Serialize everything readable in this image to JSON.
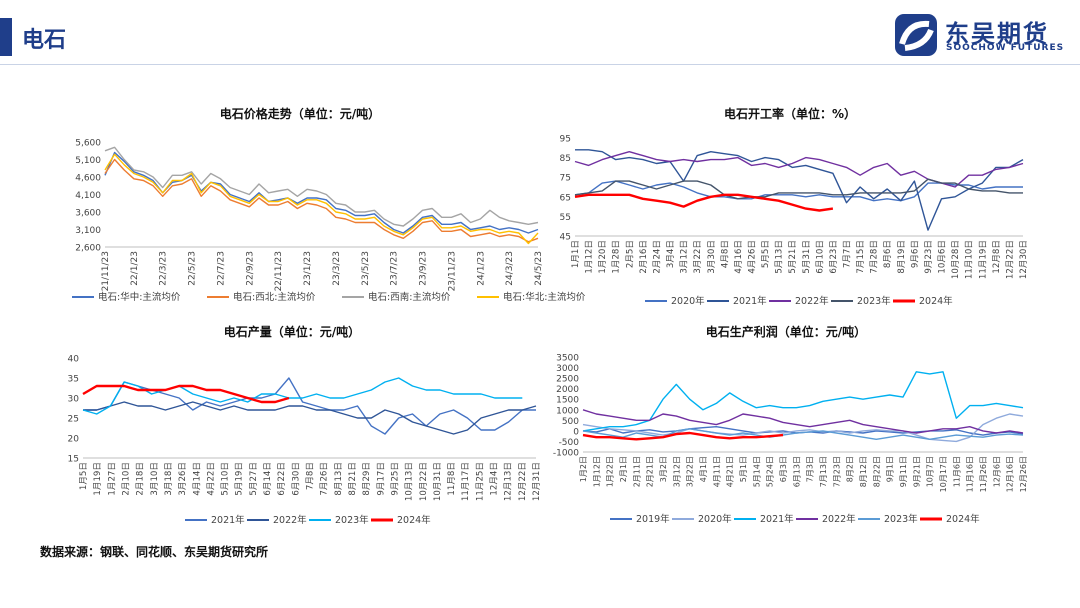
{
  "page": {
    "title": "电石",
    "source": "数据来源：钢联、同花顺、东吴期货研究所"
  },
  "logo": {
    "cn": "东吴期货",
    "en": "SOOCHOW FUTURES",
    "colors": {
      "navy": "#1f3e8a"
    }
  },
  "chart_data": [
    {
      "id": "price",
      "type": "line",
      "title": "电石价格走势（单位：元/吨）",
      "ylim": [
        2600,
        5600
      ],
      "yticks": [
        "5,600",
        "5,100",
        "4,600",
        "4,100",
        "3,600",
        "3,100",
        "2,600"
      ],
      "xticks": [
        "21/11/23",
        "22/1/23",
        "22/3/23",
        "22/5/23",
        "22/7/23",
        "22/9/23",
        "22/11/23",
        "23/1/23",
        "23/3/23",
        "23/5/23",
        "23/7/23",
        "23/9/23",
        "23/11/23",
        "24/1/23",
        "24/3/23",
        "24/5/23"
      ],
      "legend": "bottom",
      "grid": false,
      "series": [
        {
          "name": "电石:华中:主流均价",
          "color": "#4472c4",
          "values": [
            4650,
            5300,
            5050,
            4750,
            4650,
            4500,
            4150,
            4450,
            4500,
            4650,
            4200,
            4450,
            4400,
            4100,
            4000,
            3900,
            4150,
            3900,
            3950,
            4000,
            3850,
            4000,
            4000,
            3950,
            3700,
            3650,
            3500,
            3500,
            3550,
            3300,
            3100,
            3000,
            3200,
            3450,
            3500,
            3250,
            3250,
            3300,
            3100,
            3150,
            3200,
            3100,
            3150,
            3100,
            3000,
            3100
          ]
        },
        {
          "name": "电石:西北:主流均价",
          "color": "#ed7d31",
          "values": [
            4700,
            5100,
            4800,
            4550,
            4500,
            4350,
            4050,
            4350,
            4400,
            4550,
            4050,
            4350,
            4200,
            3950,
            3850,
            3750,
            4000,
            3800,
            3800,
            3900,
            3700,
            3850,
            3800,
            3700,
            3450,
            3400,
            3300,
            3300,
            3300,
            3100,
            2950,
            2850,
            3050,
            3300,
            3350,
            3050,
            3050,
            3100,
            2900,
            2950,
            3000,
            2900,
            2950,
            2900,
            2750,
            2850
          ]
        },
        {
          "name": "电石:西南:主流均价",
          "color": "#a5a5a5",
          "values": [
            5350,
            5450,
            5100,
            4800,
            4750,
            4600,
            4300,
            4650,
            4650,
            4750,
            4400,
            4700,
            4550,
            4300,
            4200,
            4100,
            4400,
            4150,
            4200,
            4250,
            4050,
            4250,
            4200,
            4100,
            3850,
            3800,
            3600,
            3600,
            3650,
            3400,
            3250,
            3200,
            3400,
            3650,
            3700,
            3450,
            3450,
            3550,
            3300,
            3400,
            3650,
            3450,
            3350,
            3300,
            3250,
            3300
          ]
        },
        {
          "name": "电石:华北:主流均价",
          "color": "#ffc000",
          "values": [
            4800,
            5250,
            4950,
            4700,
            4600,
            4450,
            4150,
            4500,
            4500,
            4700,
            4150,
            4450,
            4350,
            4050,
            3950,
            3850,
            4100,
            3900,
            3900,
            4000,
            3800,
            3950,
            3950,
            3850,
            3600,
            3550,
            3400,
            3400,
            3450,
            3200,
            3050,
            2950,
            3150,
            3400,
            3450,
            3150,
            3150,
            3200,
            3050,
            3100,
            3100,
            3000,
            3050,
            3000,
            2700,
            3000
          ]
        }
      ]
    },
    {
      "id": "operating",
      "type": "line",
      "title": "电石开工率（单位：%）",
      "ylim": [
        45,
        95
      ],
      "yticks": [
        "95",
        "85",
        "75",
        "65",
        "55",
        "45"
      ],
      "xticks": [
        "1月1日",
        "1月12日",
        "1月20日",
        "1月28日",
        "2月5日",
        "2月16日",
        "2月24日",
        "3月4日",
        "3月12日",
        "3月22日",
        "3月30日",
        "4月8日",
        "4月16日",
        "4月26日",
        "5月5日",
        "5月13日",
        "5月21日",
        "5月31日",
        "6月10日",
        "6月23日",
        "7月7日",
        "7月15日",
        "7月28日",
        "8月6日",
        "8月19日",
        "9月6日",
        "9月23日",
        "10月6日",
        "10月28日",
        "11月10日",
        "11月19日",
        "12月8日",
        "12月22日",
        "12月30日"
      ],
      "legend": "bottom",
      "grid": false,
      "series": [
        {
          "name": "2020年",
          "color": "#4472c4",
          "values": [
            66,
            67,
            72,
            73,
            71,
            69,
            71,
            72,
            70,
            67,
            65,
            65,
            64,
            64,
            66,
            66,
            66,
            65,
            66,
            65,
            65,
            65,
            63,
            64,
            63,
            65,
            72,
            72,
            71,
            71,
            69,
            70,
            70,
            70
          ]
        },
        {
          "name": "2021年",
          "color": "#2f5597",
          "values": [
            89,
            89,
            88,
            84,
            85,
            84,
            82,
            83,
            73,
            86,
            88,
            87,
            86,
            83,
            85,
            84,
            80,
            81,
            79,
            77,
            62,
            70,
            64,
            69,
            63,
            73,
            48,
            64,
            65,
            69,
            72,
            80,
            80,
            84
          ]
        },
        {
          "name": "2022年",
          "color": "#7030a0",
          "values": [
            83,
            81,
            84,
            86,
            88,
            86,
            84,
            83,
            84,
            83,
            84,
            84,
            85,
            81,
            82,
            80,
            82,
            85,
            84,
            82,
            80,
            76,
            80,
            82,
            76,
            78,
            74,
            72,
            70,
            76,
            76,
            79,
            80,
            82
          ]
        },
        {
          "name": "2023年",
          "color": "#44546a",
          "values": [
            66,
            67,
            68,
            73,
            73,
            71,
            69,
            71,
            73,
            73,
            71,
            66,
            64,
            65,
            65,
            67,
            67,
            67,
            67,
            66,
            66,
            67,
            67,
            67,
            67,
            68,
            74,
            72,
            72,
            69,
            68,
            68,
            67,
            67
          ]
        },
        {
          "name": "2024年",
          "color": "#ff0000",
          "width": 2.4,
          "values": [
            65,
            66,
            66,
            66,
            66,
            64,
            63,
            62,
            60,
            63,
            65,
            66,
            66,
            65,
            64,
            63,
            61,
            59,
            58,
            59
          ]
        }
      ]
    },
    {
      "id": "output",
      "type": "line",
      "title": "电石产量（单位：元/吨）",
      "ylim": [
        15,
        40
      ],
      "yticks": [
        "40",
        "35",
        "30",
        "25",
        "20",
        "15"
      ],
      "xticks": [
        "1月5日",
        "1月19日",
        "1月27日",
        "2月10日",
        "2月18日",
        "3月10日",
        "3月18日",
        "3月26日",
        "4月14日",
        "4月22日",
        "5月10日",
        "5月19日",
        "5月27日",
        "6月14日",
        "6月22日",
        "6月30日",
        "7月8日",
        "7月26日",
        "8月13日",
        "8月21日",
        "8月29日",
        "9月17日",
        "9月25日",
        "10月13日",
        "10月22日",
        "10月31日",
        "11月8日",
        "11月17日",
        "11月25日",
        "12月4日",
        "12月13日",
        "12月22日",
        "12月31日"
      ],
      "legend": "bottom",
      "grid": false,
      "series": [
        {
          "name": "2021年",
          "color": "#4472c4",
          "values": [
            27,
            27,
            28,
            34,
            33,
            32,
            31,
            30,
            27,
            29,
            28,
            29,
            30,
            30,
            31,
            35,
            29,
            28,
            27,
            27,
            28,
            23,
            21,
            25,
            26,
            23,
            26,
            27,
            25,
            22,
            22,
            24,
            27,
            27
          ]
        },
        {
          "name": "2022年",
          "color": "#2f5597",
          "values": [
            27,
            27,
            28,
            29,
            28,
            28,
            27,
            28,
            29,
            28,
            27,
            28,
            27,
            27,
            27,
            28,
            28,
            27,
            27,
            26,
            25,
            25,
            27,
            26,
            24,
            23,
            22,
            21,
            22,
            25,
            26,
            27,
            27,
            28
          ]
        },
        {
          "name": "2023年",
          "color": "#00b0f0",
          "values": [
            27,
            26,
            28,
            34,
            33,
            31,
            32,
            33,
            31,
            30,
            29,
            30,
            29,
            31,
            31,
            30,
            30,
            31,
            30,
            30,
            31,
            32,
            34,
            35,
            33,
            32,
            32,
            31,
            31,
            31,
            30,
            30,
            30
          ]
        },
        {
          "name": "2024年",
          "color": "#ff0000",
          "width": 2.4,
          "values": [
            31,
            33,
            33,
            33,
            32,
            32,
            32,
            33,
            33,
            32,
            32,
            31,
            30,
            29,
            29,
            30
          ]
        }
      ]
    },
    {
      "id": "profit",
      "type": "line",
      "title": "电石生产利润（单位：元/吨）",
      "ylim": [
        -1000,
        3500
      ],
      "yticks": [
        "3500",
        "3000",
        "2500",
        "2000",
        "1500",
        "1000",
        "500",
        "0",
        "-500",
        "-1000"
      ],
      "xticks": [
        "1月2日",
        "1月12日",
        "1月22日",
        "2月1日",
        "2月11日",
        "2月21日",
        "3月2日",
        "3月12日",
        "3月22日",
        "4月1日",
        "4月11日",
        "4月21日",
        "5月1日",
        "5月14日",
        "5月24日",
        "6月3日",
        "6月13日",
        "7月3日",
        "7月13日",
        "7月23日",
        "8月2日",
        "8月12日",
        "8月22日",
        "9月1日",
        "9月11日",
        "9月21日",
        "10月7日",
        "10月17日",
        "11月6日",
        "11月16日",
        "11月26日",
        "12月6日",
        "12月16日",
        "12月26日"
      ],
      "legend": "bottom",
      "grid": false,
      "series": [
        {
          "name": "2019年",
          "color": "#4472c4",
          "values": [
            0,
            -50,
            100,
            -100,
            0,
            50,
            -50,
            0,
            100,
            150,
            200,
            100,
            0,
            -100,
            -50,
            0,
            -100,
            -50,
            -100,
            0,
            -50,
            -100,
            0,
            -50,
            -100,
            -50,
            0,
            0,
            50,
            -100,
            -200,
            -100,
            -50,
            -150
          ]
        },
        {
          "name": "2020年",
          "color": "#8faadc",
          "values": [
            300,
            200,
            100,
            50,
            0,
            -100,
            -200,
            -100,
            100,
            0,
            -100,
            -150,
            -200,
            -100,
            0,
            -100,
            0,
            50,
            -50,
            0,
            -100,
            0,
            50,
            0,
            0,
            -200,
            -400,
            -450,
            -500,
            -300,
            300,
            600,
            800,
            700
          ]
        },
        {
          "name": "2021年",
          "color": "#00b0f0",
          "values": [
            0,
            100,
            200,
            200,
            300,
            500,
            1500,
            2200,
            1500,
            1000,
            1300,
            1800,
            1400,
            1100,
            1200,
            1100,
            1100,
            1200,
            1400,
            1500,
            1600,
            1500,
            1600,
            1700,
            1600,
            2800,
            2700,
            2800,
            600,
            1200,
            1200,
            1300,
            1200,
            1100
          ]
        },
        {
          "name": "2022年",
          "color": "#7030a0",
          "values": [
            1000,
            800,
            700,
            600,
            500,
            500,
            800,
            700,
            500,
            400,
            300,
            500,
            800,
            700,
            600,
            400,
            300,
            200,
            300,
            400,
            500,
            300,
            200,
            100,
            0,
            -100,
            0,
            100,
            100,
            200,
            0,
            -100,
            0,
            -100
          ]
        },
        {
          "name": "2023年",
          "color": "#5b9bd5",
          "values": [
            0,
            -100,
            -200,
            -300,
            -100,
            -200,
            -300,
            0,
            100,
            0,
            -100,
            -200,
            -100,
            -200,
            -300,
            -200,
            -100,
            -50,
            0,
            -100,
            -200,
            -300,
            -400,
            -300,
            -200,
            -300,
            -400,
            -300,
            -200,
            -250,
            -300,
            -200,
            -150,
            -200
          ]
        },
        {
          "name": "2024年",
          "color": "#ff0000",
          "width": 2.4,
          "values": [
            -200,
            -300,
            -300,
            -350,
            -400,
            -350,
            -300,
            -150,
            -100,
            -200,
            -300,
            -350,
            -300,
            -300,
            -250,
            -200
          ]
        }
      ]
    }
  ]
}
